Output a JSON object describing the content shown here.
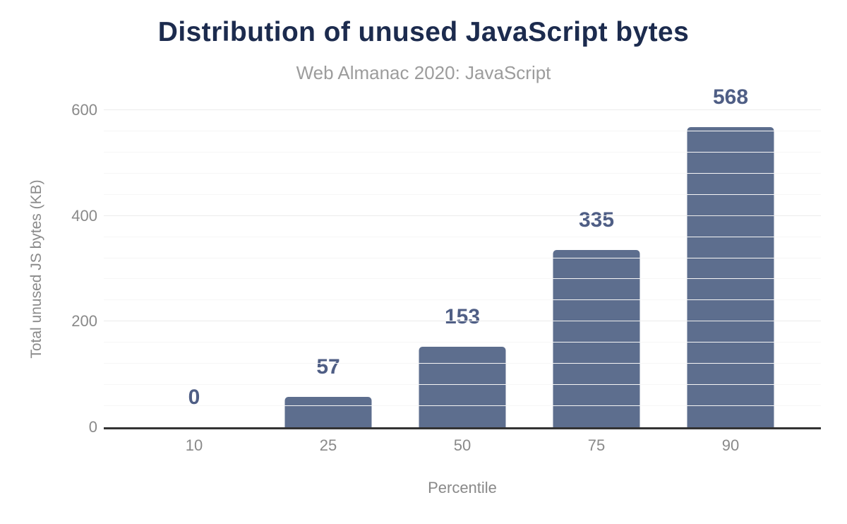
{
  "header": {
    "title": "Distribution of unused JavaScript bytes",
    "subtitle": "Web Almanac 2020: JavaScript"
  },
  "chart_data": {
    "type": "bar",
    "title": "Distribution of unused JavaScript bytes",
    "subtitle": "Web Almanac 2020: JavaScript",
    "categories": [
      "10",
      "25",
      "50",
      "75",
      "90"
    ],
    "values": [
      0,
      57,
      153,
      335,
      568
    ],
    "data_labels": [
      "0",
      "57",
      "153",
      "335",
      "568"
    ],
    "xlabel": "Percentile",
    "ylabel": "Total unused JS bytes (KB)",
    "ylim": [
      0,
      600
    ],
    "y_major_ticks": [
      0,
      200,
      400,
      600
    ],
    "y_minor_step": 40,
    "grid": "on",
    "legend": "none",
    "colors": {
      "bar": "#5d6e8e",
      "data_label": "#4f5e85",
      "title": "#1c2b4e",
      "subtitle": "#9c9c9c",
      "axis_text": "#898989",
      "axis_line": "#333333",
      "major_gridline": "#ebebeb",
      "minor_gridline": "#f6f6f6"
    }
  }
}
